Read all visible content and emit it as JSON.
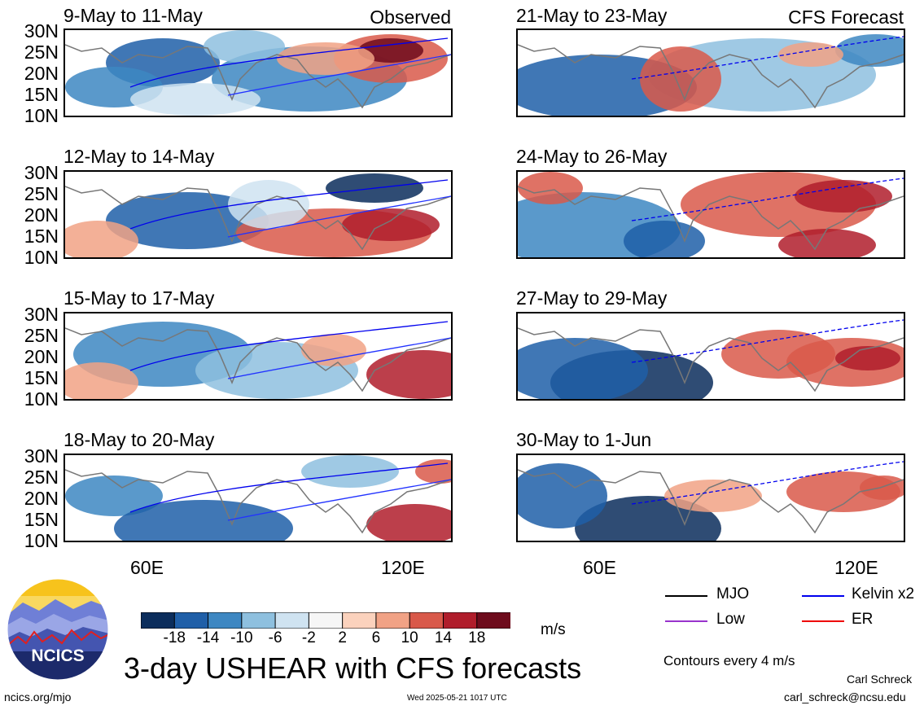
{
  "panels": [
    {
      "title": "9-May to 11-May",
      "corner": "Observed"
    },
    {
      "title": "21-May to 23-May",
      "corner": "CFS Forecast"
    },
    {
      "title": "12-May to 14-May",
      "corner": ""
    },
    {
      "title": "24-May to 26-May",
      "corner": ""
    },
    {
      "title": "15-May to 17-May",
      "corner": ""
    },
    {
      "title": "27-May to 29-May",
      "corner": ""
    },
    {
      "title": "18-May to 20-May",
      "corner": ""
    },
    {
      "title": "30-May to 1-Jun",
      "corner": ""
    }
  ],
  "lat_labels": [
    "30N",
    "25N",
    "20N",
    "15N",
    "10N"
  ],
  "lon_labels": [
    "60E",
    "120E"
  ],
  "colorbar": {
    "ticks": [
      "-18",
      "-14",
      "-10",
      "-6",
      "-2",
      "2",
      "6",
      "10",
      "14",
      "18"
    ],
    "colors": [
      "#0b2d5c",
      "#1f5fa8",
      "#3d87c2",
      "#8ec0df",
      "#cfe3f1",
      "#f6f6f6",
      "#fbd2bd",
      "#f1a285",
      "#d9594a",
      "#b01d2b",
      "#6e0b1c"
    ],
    "units": "m/s"
  },
  "legend": {
    "items": [
      {
        "label": "MJO",
        "color": "#000000"
      },
      {
        "label": "Kelvin x2",
        "color": "#0000ee"
      },
      {
        "label": "Low",
        "color": "#9933cc"
      },
      {
        "label": "ER",
        "color": "#ee0000"
      }
    ],
    "contour_note": "Contours every 4 m/s"
  },
  "logo_text": "NCICS",
  "main_title": "3-day USHEAR with CFS forecasts",
  "footer": {
    "url": "ncics.org/mjo",
    "timestamp": "Wed 2025-05-21 1017 UTC",
    "author": "Carl Schreck",
    "email": "carl_schreck@ncsu.edu"
  }
}
